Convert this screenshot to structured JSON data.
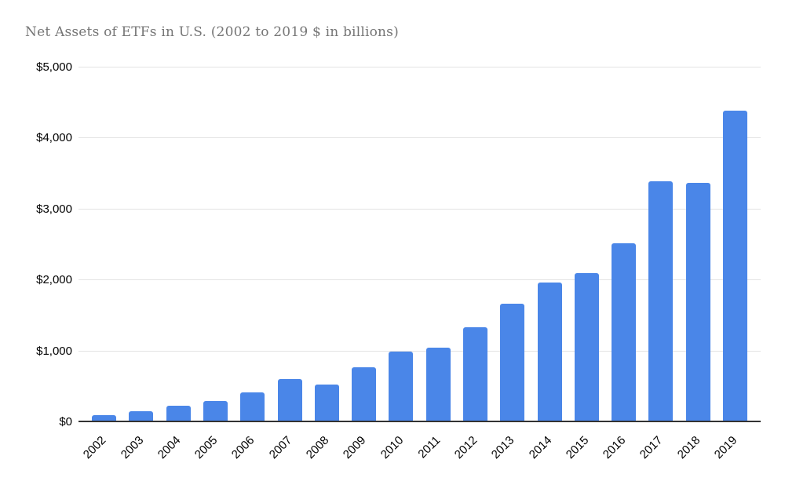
{
  "page": {
    "background": "#ffffff"
  },
  "header": {
    "title": "Net Assets of ETFs in U.S. (2002 to 2019 $ in billions)"
  },
  "chart_data": {
    "type": "bar",
    "title": "Net Assets of ETFs in U.S. (2002 to 2019 $ in billions)",
    "categories": [
      "2002",
      "2003",
      "2004",
      "2005",
      "2006",
      "2007",
      "2008",
      "2009",
      "2010",
      "2011",
      "2012",
      "2013",
      "2014",
      "2015",
      "2016",
      "2017",
      "2018",
      "2019"
    ],
    "values": [
      102,
      151,
      228,
      301,
      423,
      608,
      531,
      777,
      992,
      1048,
      1337,
      1675,
      1974,
      2100,
      2524,
      3401,
      3371,
      4396
    ],
    "xlabel": "",
    "ylabel": "",
    "ylim": [
      0,
      5000
    ],
    "yticks": [
      0,
      1000,
      2000,
      3000,
      4000,
      5000
    ],
    "ytick_labels": [
      "$0",
      "$1,000",
      "$2,000",
      "$3,000",
      "$4,000",
      "$5,000"
    ],
    "grid": true,
    "legend_position": "none",
    "x_tick_rotation": -45,
    "bar_color": "#4a86e8"
  },
  "colors": {
    "bar": "#4a86e8",
    "title_text": "#767676",
    "axis_text": "#000000",
    "gridline": "#e3e3e3",
    "axis_line": "#333333",
    "background": "#ffffff"
  }
}
